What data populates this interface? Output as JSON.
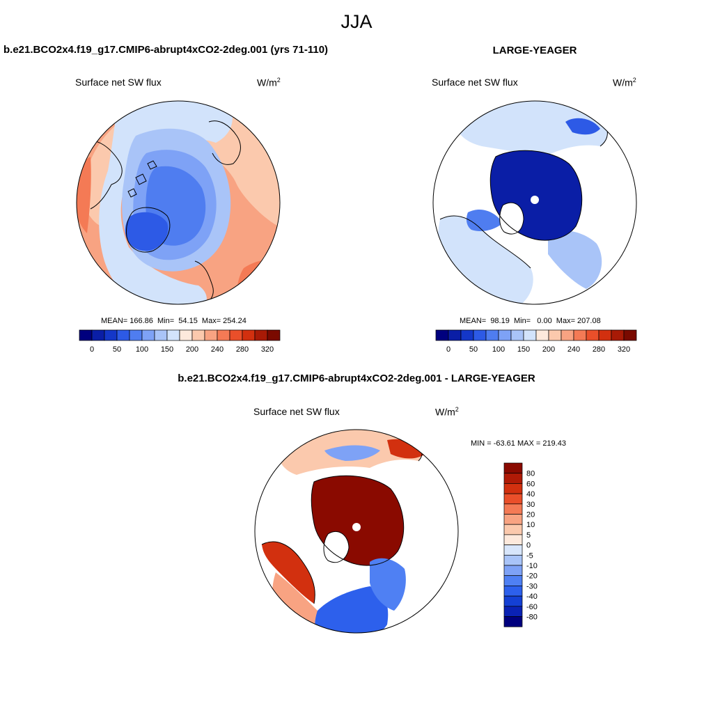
{
  "main_title": "JJA",
  "colors": {
    "palette_abs": [
      "#00007e",
      "#0a1ea6",
      "#1437c8",
      "#2d5ae6",
      "#4f7df0",
      "#7ea2f6",
      "#a9c4f8",
      "#d2e3fb",
      "#fde9dc",
      "#fbc9ad",
      "#f8a382",
      "#f47a55",
      "#ea4f2a",
      "#d2300f",
      "#a81a06",
      "#7a0a00"
    ],
    "palette_diff": [
      "#00007e",
      "#0a22b4",
      "#1440d4",
      "#2d60ec",
      "#4f80f3",
      "#7ea2f6",
      "#a9c4f8",
      "#d8e6fb",
      "#fde9dc",
      "#fbc9ad",
      "#f8a382",
      "#f47a55",
      "#ea4f2a",
      "#d2300f",
      "#b01a06",
      "#8a0a00"
    ],
    "land": "#ffffff",
    "coast": "#000000"
  },
  "chart_data": [
    {
      "id": "panel-model",
      "type": "heatmap",
      "projection": "north-polar-stereographic",
      "title": "b.e21.BCO2x4.f19_g17.CMIP6-abrupt4xCO2-2deg.001 (yrs 71-110)",
      "left_label": "Surface net SW flux",
      "units": "W/m",
      "units_sup": "2",
      "stats_text": "MEAN= 166.86  Min=  54.15  Max= 254.24",
      "mean": 166.86,
      "min": 54.15,
      "max": 254.24,
      "colorbar_levels": [
        0,
        25,
        50,
        75,
        100,
        125,
        150,
        175,
        200,
        220,
        240,
        260,
        280,
        300,
        320
      ],
      "colorbar_tick_labels": [
        "0",
        "50",
        "100",
        "150",
        "200",
        "240",
        "280",
        "320"
      ],
      "colorbar_tick_levels": [
        0,
        50,
        100,
        150,
        200,
        240,
        280,
        320
      ]
    },
    {
      "id": "panel-obs",
      "type": "heatmap",
      "projection": "north-polar-stereographic",
      "title": "LARGE-YEAGER",
      "left_label": "Surface net SW flux",
      "units": "W/m",
      "units_sup": "2",
      "stats_text": "MEAN=  98.19  Min=   0.00  Max= 207.08",
      "mean": 98.19,
      "min": 0.0,
      "max": 207.08,
      "colorbar_levels": [
        0,
        25,
        50,
        75,
        100,
        125,
        150,
        175,
        200,
        220,
        240,
        260,
        280,
        300,
        320
      ],
      "colorbar_tick_labels": [
        "0",
        "50",
        "100",
        "150",
        "200",
        "240",
        "280",
        "320"
      ],
      "colorbar_tick_levels": [
        0,
        50,
        100,
        150,
        200,
        240,
        280,
        320
      ]
    },
    {
      "id": "panel-diff",
      "type": "heatmap",
      "projection": "north-polar-stereographic",
      "title": "b.e21.BCO2x4.f19_g17.CMIP6-abrupt4xCO2-2deg.001 - LARGE-YEAGER",
      "left_label": "Surface net SW flux",
      "units": "W/m",
      "units_sup": "2",
      "stats_text": "MIN = -63.61 MAX = 219.43",
      "min": -63.61,
      "max": 219.43,
      "colorbar_levels": [
        -80,
        -60,
        -40,
        -30,
        -20,
        -10,
        -5,
        0,
        5,
        10,
        20,
        30,
        40,
        60,
        80
      ],
      "colorbar_tick_labels": [
        "80",
        "60",
        "40",
        "30",
        "20",
        "10",
        "5",
        "0",
        "-5",
        "-10",
        "-20",
        "-30",
        "-40",
        "-60",
        "-80"
      ]
    }
  ]
}
